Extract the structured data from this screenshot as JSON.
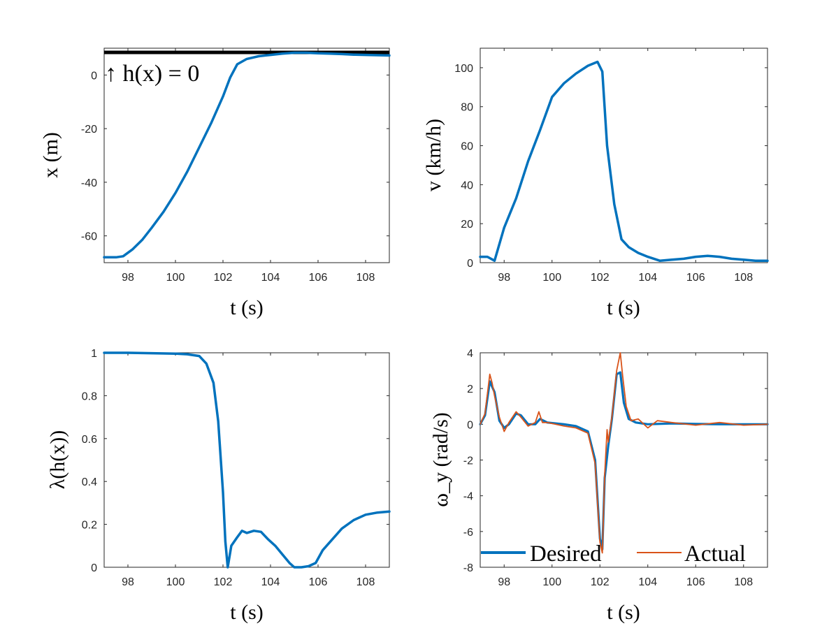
{
  "chart_data": [
    {
      "id": "x",
      "type": "line",
      "xlabel": "t (s)",
      "ylabel": "x (m)",
      "xlim": [
        97,
        109
      ],
      "ylim": [
        -70,
        10
      ],
      "xticks": [
        98,
        100,
        102,
        104,
        106,
        108
      ],
      "yticks": [
        -60,
        -40,
        -20,
        0
      ],
      "tick_labels_x": [
        "98",
        "100",
        "102",
        "104",
        "106",
        "108"
      ],
      "tick_labels_y": [
        "-60",
        "-40",
        "-20",
        "0"
      ],
      "reference_line": {
        "y": 10,
        "label": "↑ h(x) = 0",
        "color": "#000000"
      },
      "series": [
        {
          "name": "x",
          "color": "#0072BD",
          "x": [
            97,
            97.5,
            97.8,
            98.2,
            98.6,
            99,
            99.5,
            100,
            100.5,
            101,
            101.5,
            102,
            102.3,
            102.6,
            103,
            103.5,
            104,
            104.5,
            105,
            105.5,
            106,
            106.5,
            107,
            107.5,
            108,
            108.5,
            109
          ],
          "y": [
            -68,
            -68,
            -67.6,
            -65,
            -61.5,
            -57,
            -51,
            -44,
            -36,
            -27,
            -18,
            -8,
            -1,
            4,
            6,
            7,
            7.5,
            8,
            8.3,
            8.3,
            8.1,
            8,
            7.8,
            7.6,
            7.5,
            7.4,
            7.3
          ]
        }
      ]
    },
    {
      "id": "v",
      "type": "line",
      "xlabel": "t (s)",
      "ylabel": "v (km/h)",
      "xlim": [
        97,
        109
      ],
      "ylim": [
        0,
        110
      ],
      "xticks": [
        98,
        100,
        102,
        104,
        106,
        108
      ],
      "yticks": [
        0,
        20,
        40,
        60,
        80,
        100
      ],
      "tick_labels_x": [
        "98",
        "100",
        "102",
        "104",
        "106",
        "108"
      ],
      "tick_labels_y": [
        "0",
        "20",
        "40",
        "60",
        "80",
        "100"
      ],
      "series": [
        {
          "name": "v",
          "color": "#0072BD",
          "x": [
            97,
            97.3,
            97.6,
            98,
            98.5,
            99,
            99.5,
            100,
            100.5,
            101,
            101.5,
            101.9,
            102.1,
            102.3,
            102.6,
            102.9,
            103.2,
            103.6,
            104,
            104.5,
            105,
            105.5,
            106,
            106.5,
            107,
            107.5,
            108,
            108.5,
            109
          ],
          "y": [
            3,
            3,
            1,
            18,
            33,
            52,
            68,
            85,
            92,
            97,
            101,
            103,
            98,
            60,
            30,
            12,
            8,
            5,
            3,
            1,
            1.5,
            2,
            3,
            3.5,
            3,
            2,
            1.5,
            1,
            1
          ]
        }
      ]
    },
    {
      "id": "lambda",
      "type": "line",
      "xlabel": "t (s)",
      "ylabel": "λ(h(x))",
      "xlim": [
        97,
        109
      ],
      "ylim": [
        0,
        1
      ],
      "xticks": [
        98,
        100,
        102,
        104,
        106,
        108
      ],
      "yticks": [
        0,
        0.2,
        0.4,
        0.6,
        0.8,
        1
      ],
      "tick_labels_x": [
        "98",
        "100",
        "102",
        "104",
        "106",
        "108"
      ],
      "tick_labels_y": [
        "0",
        "0.2",
        "0.4",
        "0.6",
        "0.8",
        "1"
      ],
      "series": [
        {
          "name": "λ(h(x))",
          "color": "#0072BD",
          "x": [
            97,
            98,
            99,
            100,
            100.5,
            101,
            101.3,
            101.6,
            101.8,
            102,
            102.1,
            102.2,
            102.35,
            102.6,
            102.8,
            103,
            103.3,
            103.6,
            103.9,
            104.2,
            104.5,
            104.8,
            105,
            105.3,
            105.6,
            105.9,
            106.2,
            106.6,
            107,
            107.5,
            108,
            108.5,
            109
          ],
          "y": [
            1,
            1,
            0.998,
            0.996,
            0.993,
            0.985,
            0.95,
            0.86,
            0.68,
            0.35,
            0.12,
            0.0,
            0.1,
            0.14,
            0.17,
            0.16,
            0.17,
            0.165,
            0.13,
            0.1,
            0.06,
            0.02,
            0.0,
            0.0,
            0.005,
            0.02,
            0.08,
            0.13,
            0.18,
            0.22,
            0.245,
            0.255,
            0.26
          ]
        }
      ]
    },
    {
      "id": "omega",
      "type": "line",
      "xlabel": "t (s)",
      "ylabel": "ω_y (rad/s)",
      "xlim": [
        97,
        109
      ],
      "ylim": [
        -8,
        4
      ],
      "xticks": [
        98,
        100,
        102,
        104,
        106,
        108
      ],
      "yticks": [
        -8,
        -6,
        -4,
        -2,
        0,
        2,
        4
      ],
      "tick_labels_x": [
        "98",
        "100",
        "102",
        "104",
        "106",
        "108"
      ],
      "tick_labels_y": [
        "-8",
        "-6",
        "-4",
        "-2",
        "0",
        "2",
        "4"
      ],
      "legend": {
        "position": "bottom",
        "entries": [
          "Desired",
          "Actual"
        ]
      },
      "series": [
        {
          "name": "Desired",
          "color": "#0072BD",
          "x": [
            97,
            97.2,
            97.4,
            97.6,
            97.8,
            98,
            98.2,
            98.5,
            98.7,
            99,
            99.3,
            99.5,
            99.8,
            100.5,
            101,
            101.5,
            101.8,
            102,
            102.1,
            102.2,
            102.35,
            102.5,
            102.7,
            102.85,
            103,
            103.2,
            103.5,
            104,
            105,
            106,
            107,
            108,
            109
          ],
          "y": [
            0,
            0.5,
            2.4,
            1.8,
            0.2,
            -0.2,
            0,
            0.6,
            0.5,
            0,
            0,
            0.3,
            0.1,
            0,
            -0.1,
            -0.4,
            -2,
            -6.4,
            -7.0,
            -3,
            -1.2,
            0.3,
            2.8,
            2.9,
            1.2,
            0.3,
            0.1,
            0,
            0.05,
            0.02,
            0.0,
            0.0,
            0.0
          ]
        },
        {
          "name": "Actual",
          "color": "#D95319",
          "x": [
            97,
            97.2,
            97.4,
            97.5,
            97.6,
            97.8,
            98,
            98.2,
            98.5,
            98.7,
            99,
            99.3,
            99.45,
            99.6,
            99.8,
            100.5,
            101,
            101.5,
            101.8,
            102,
            102.1,
            102.2,
            102.3,
            102.35,
            102.5,
            102.7,
            102.85,
            102.95,
            103.1,
            103.3,
            103.6,
            104,
            104.4,
            105,
            106,
            107,
            108,
            109
          ],
          "y": [
            0,
            0.6,
            2.8,
            2.3,
            1.6,
            0.4,
            -0.4,
            0.1,
            0.7,
            0.4,
            -0.1,
            0.1,
            0.7,
            0.1,
            0.1,
            -0.1,
            -0.2,
            -0.5,
            -2.2,
            -6.6,
            -7.2,
            -2.8,
            -0.3,
            -1.0,
            0.4,
            3.0,
            4.0,
            2.7,
            1.0,
            0.2,
            0.3,
            -0.2,
            0.2,
            0.1,
            -0.05,
            0.1,
            -0.05,
            0.0
          ]
        }
      ]
    }
  ]
}
